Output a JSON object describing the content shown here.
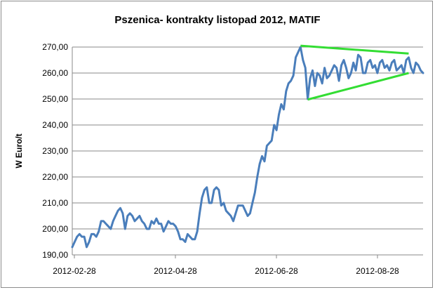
{
  "chart_data": {
    "type": "line",
    "title": "Pszenica- kontrakty listopad 2012, MATIF",
    "xlabel": "",
    "ylabel": "W Euro/t",
    "ylim": [
      190,
      270
    ],
    "yticks": [
      "190,00",
      "200,00",
      "210,00",
      "220,00",
      "230,00",
      "240,00",
      "250,00",
      "260,00",
      "270,00"
    ],
    "xticks": [
      "2012-02-28",
      "2012-04-28",
      "2012-06-28",
      "2012-08-28"
    ],
    "grid": "horizontal",
    "series": [
      {
        "color": "#4a7ebb",
        "values": [
          193,
          195,
          197,
          198,
          197,
          197,
          193,
          195,
          198,
          198,
          197,
          199,
          203,
          203,
          202,
          201,
          200,
          203,
          205,
          207,
          208,
          206,
          200,
          205,
          206,
          205,
          203,
          204,
          205,
          203,
          202,
          200,
          200,
          203,
          202,
          204,
          202,
          202,
          199,
          201,
          203,
          202,
          202,
          201,
          199,
          196,
          196,
          195,
          198,
          197,
          196,
          196,
          199,
          206,
          212,
          215,
          216,
          210,
          210,
          215,
          216,
          215,
          209,
          210,
          207,
          206,
          205,
          203,
          206,
          209,
          209,
          209,
          207,
          205,
          206,
          210,
          214,
          220,
          225,
          228,
          226,
          232,
          233,
          234,
          240,
          238,
          244,
          248,
          246,
          253,
          256,
          257,
          259,
          266,
          268,
          270,
          265,
          262,
          250,
          258,
          261,
          255,
          260,
          259,
          256,
          262,
          258,
          259,
          261,
          263,
          262,
          257,
          263,
          265,
          262,
          258,
          260,
          264,
          261,
          267,
          266,
          260,
          260,
          264,
          265,
          262,
          263,
          260,
          264,
          265,
          262,
          263,
          261,
          264,
          265,
          261,
          262,
          263,
          260,
          265,
          266,
          262,
          260,
          264,
          263,
          261,
          260
        ]
      }
    ],
    "trendlines": [
      {
        "color": "#33dd33",
        "from": [
          95,
          270.5
        ],
        "to": [
          140,
          267.5
        ]
      },
      {
        "color": "#33dd33",
        "from": [
          98,
          249.8
        ],
        "to": [
          140,
          260.0
        ]
      }
    ]
  }
}
